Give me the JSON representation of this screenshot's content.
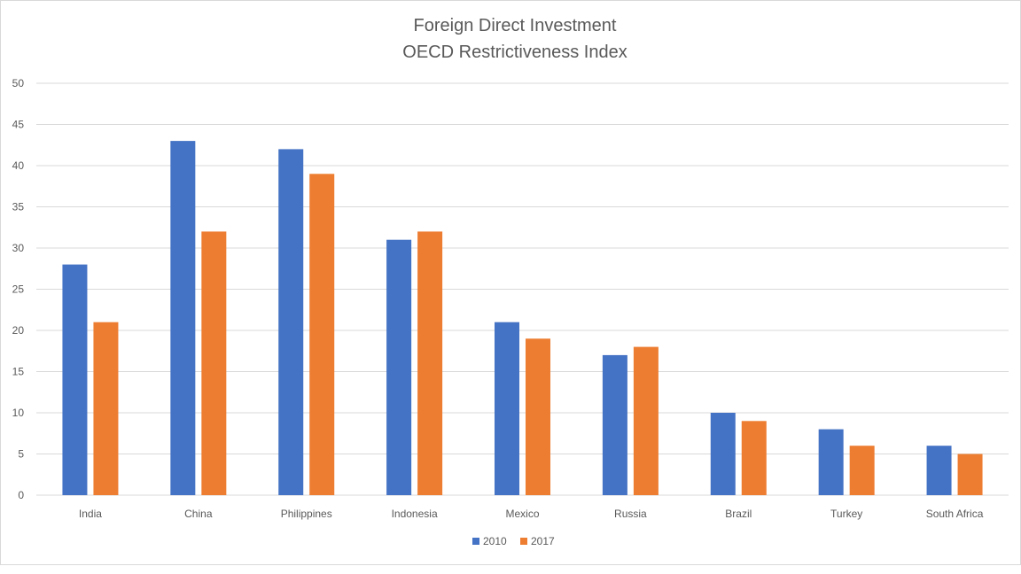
{
  "chart_data": {
    "type": "bar",
    "title": [
      "Foreign Direct Investment",
      "OECD Restrictiveness Index"
    ],
    "categories": [
      "India",
      "China",
      "Philippines",
      "Indonesia",
      "Mexico",
      "Russia",
      "Brazil",
      "Turkey",
      "South Africa"
    ],
    "series": [
      {
        "name": "2010",
        "color": "#4472c4",
        "values": [
          28,
          43,
          42,
          31,
          21,
          17,
          10,
          8,
          6
        ]
      },
      {
        "name": "2017",
        "color": "#ed7d31",
        "values": [
          21,
          32,
          39,
          32,
          19,
          18,
          9,
          6,
          5
        ]
      }
    ],
    "ylim": [
      0,
      50
    ],
    "yticks": [
      0,
      5,
      10,
      15,
      20,
      25,
      30,
      35,
      40,
      45,
      50
    ],
    "xlabel": "",
    "ylabel": "",
    "grid": true,
    "legend": "bottom"
  }
}
